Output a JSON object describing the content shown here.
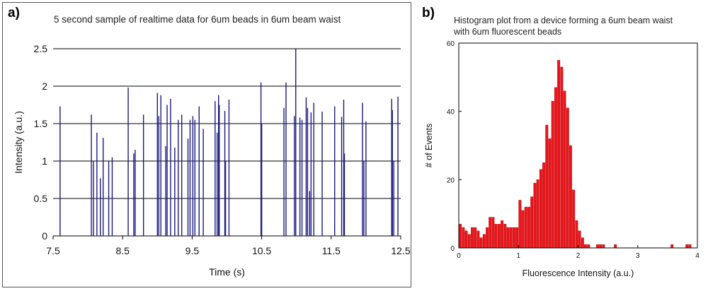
{
  "panel_labels": {
    "a": "a)",
    "b": "b)"
  },
  "chart_data": [
    {
      "type": "line",
      "style": "spike-train",
      "title": "5 second sample of realtime data for 6um beads in 6um beam waist",
      "xlabel": "Time (s)",
      "ylabel": "Intensity (a.u.)",
      "xlim": [
        7.5,
        12.5
      ],
      "ylim": [
        0,
        2.5
      ],
      "xticks": [
        "7.5",
        "8.5",
        "9.5",
        "10.5",
        "11.5",
        "12.5"
      ],
      "yticks": [
        "0",
        "0.5",
        "1",
        "1.5",
        "2",
        "2.5"
      ],
      "grid": "horizontal",
      "color": "#1a1a80",
      "series": [
        {
          "x": [
            7.6,
            8.05,
            8.08,
            8.13,
            8.18,
            8.22,
            8.3,
            8.35,
            8.58,
            8.66,
            8.68,
            8.8,
            9.0,
            9.02,
            9.05,
            9.12,
            9.14,
            9.19,
            9.25,
            9.3,
            9.35,
            9.44,
            9.47,
            9.51,
            9.54,
            9.6,
            9.66,
            9.83,
            9.86,
            9.88,
            9.89,
            9.97,
            9.98,
            10.03,
            10.49,
            10.5,
            10.82,
            10.85,
            10.97,
            10.99,
            11.05,
            11.08,
            11.14,
            11.16,
            11.19,
            11.21,
            11.25,
            11.37,
            11.55,
            11.65,
            11.68,
            11.69,
            11.95,
            11.97,
            12.0,
            12.37,
            12.38,
            12.4,
            12.46
          ],
          "y": [
            1.73,
            1.62,
            1.0,
            1.38,
            0.77,
            1.31,
            1.0,
            1.05,
            1.98,
            1.1,
            1.15,
            1.62,
            1.91,
            1.6,
            1.88,
            1.2,
            1.75,
            1.83,
            1.18,
            1.55,
            1.62,
            1.3,
            1.55,
            1.6,
            1.55,
            1.73,
            1.43,
            1.8,
            1.38,
            1.88,
            1.75,
            1.67,
            1.0,
            1.82,
            2.05,
            1.5,
            1.71,
            2.05,
            1.6,
            2.5,
            1.58,
            1.55,
            1.85,
            1.71,
            0.6,
            1.65,
            1.78,
            1.66,
            1.73,
            1.59,
            1.82,
            1.1,
            1.78,
            1.0,
            1.53,
            1.83,
            1.68,
            1.0,
            1.86
          ]
        }
      ]
    },
    {
      "type": "bar",
      "style": "histogram",
      "title": "Histogram plot from a device forming a 6um beam waist\nwith 6um fluorescent beads",
      "title_lines": [
        "Histogram plot from a device forming a 6um beam waist",
        "with 6um fluorescent beads"
      ],
      "xlabel": "Fluorescence Intensity (a.u.)",
      "ylabel": "# of Events",
      "xlim": [
        0,
        4
      ],
      "ylim": [
        0,
        60
      ],
      "xticks": [
        "0",
        "1",
        "2",
        "3",
        "4"
      ],
      "yticks": [
        "0",
        "20",
        "40",
        "60"
      ],
      "grid": "off",
      "color": "#e8141a",
      "bin_width": 0.05,
      "bin_starts": [
        0.0,
        0.05,
        0.1,
        0.15,
        0.2,
        0.25,
        0.3,
        0.35,
        0.4,
        0.45,
        0.5,
        0.55,
        0.6,
        0.65,
        0.7,
        0.75,
        0.8,
        0.85,
        0.9,
        0.95,
        1.0,
        1.05,
        1.1,
        1.15,
        1.2,
        1.25,
        1.3,
        1.35,
        1.4,
        1.45,
        1.5,
        1.55,
        1.6,
        1.65,
        1.7,
        1.75,
        1.8,
        1.85,
        1.9,
        1.95,
        2.0,
        2.05,
        2.1,
        2.15,
        2.2,
        2.25,
        2.3,
        2.35,
        2.4,
        2.45,
        2.5,
        2.55,
        2.6,
        2.65,
        2.7,
        2.75,
        2.8,
        2.85,
        2.9,
        2.95,
        3.0,
        3.05,
        3.1,
        3.15,
        3.2,
        3.25,
        3.3,
        3.35,
        3.4,
        3.45,
        3.5,
        3.55,
        3.6,
        3.65,
        3.7,
        3.75,
        3.8,
        3.85,
        3.9,
        3.95
      ],
      "values": [
        7,
        6,
        5,
        4,
        6,
        6,
        5,
        3,
        4,
        6,
        9,
        9,
        7,
        7,
        8,
        7,
        6,
        6,
        6,
        6,
        14,
        11,
        12,
        12,
        15,
        19,
        20,
        23,
        25,
        36,
        32,
        43,
        47,
        55,
        53,
        46,
        41,
        30,
        17,
        8,
        5,
        3,
        1,
        1,
        0,
        0,
        1,
        1,
        1,
        0,
        0,
        0,
        1,
        0,
        0,
        0,
        0,
        0,
        0,
        0,
        0,
        0,
        0,
        0,
        0,
        0,
        0,
        0,
        0,
        0,
        0,
        1,
        0,
        0,
        0,
        0,
        1,
        1,
        0,
        0
      ]
    }
  ]
}
